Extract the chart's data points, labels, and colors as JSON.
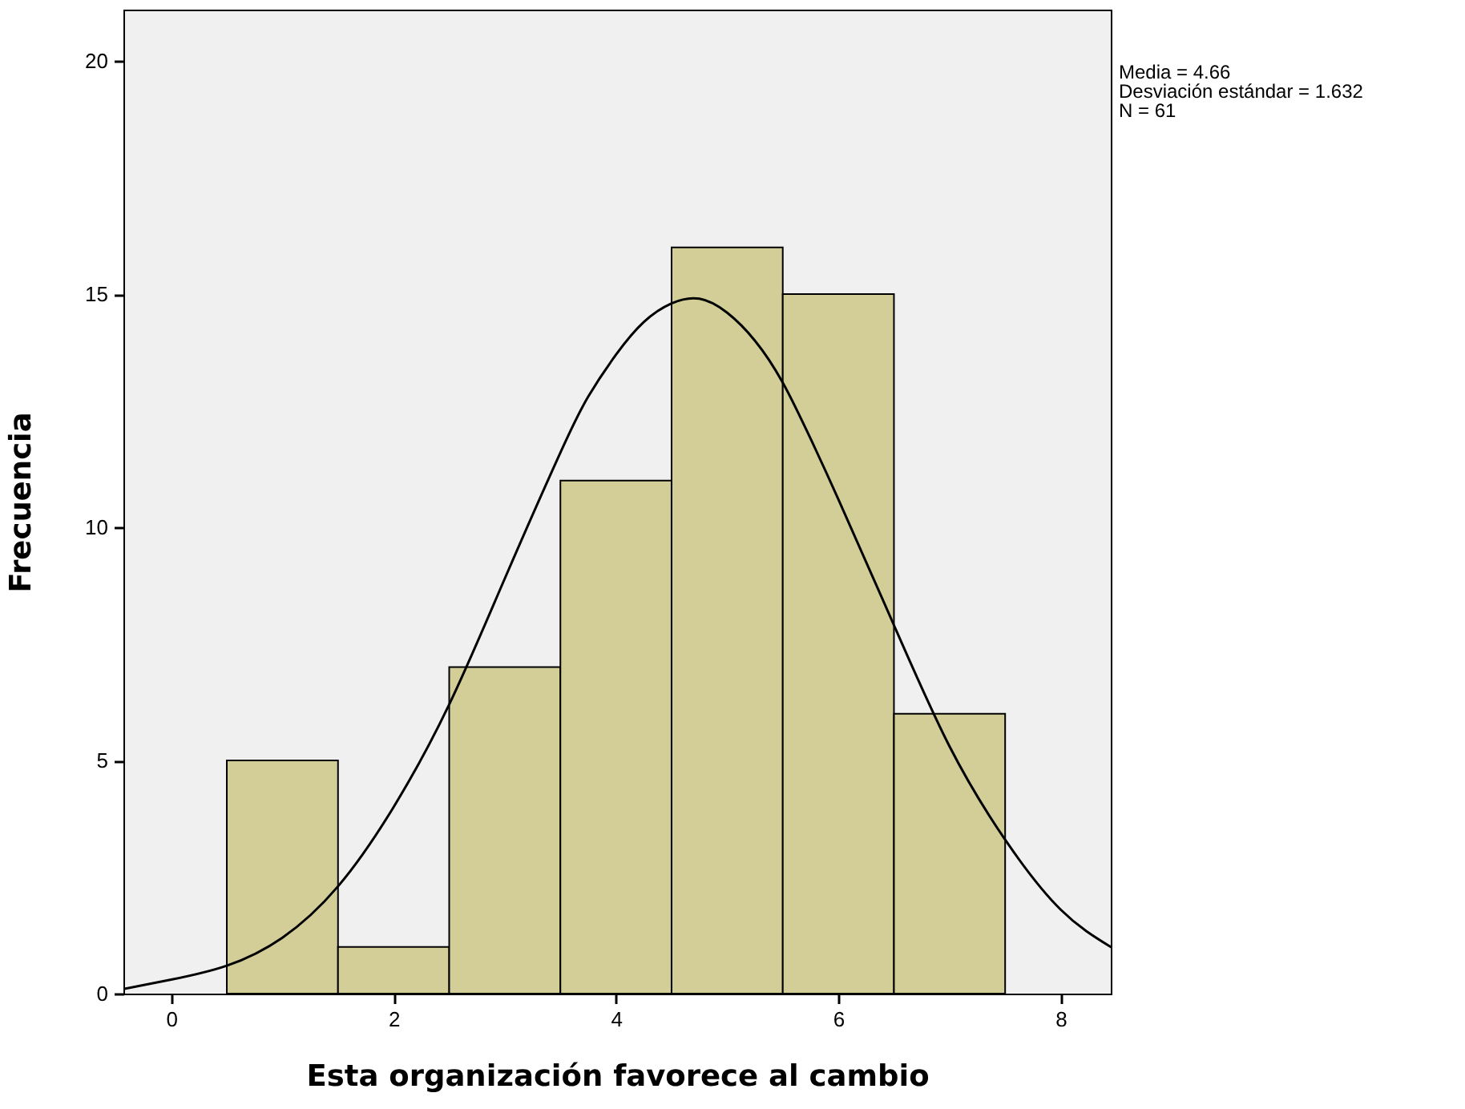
{
  "chart_data": {
    "type": "histogram",
    "xlabel": "Esta organización favorece al cambio",
    "ylabel": "Frecuencia",
    "bins": [
      0.5,
      1.5,
      2.5,
      3.5,
      4.5,
      5.5,
      6.5,
      7.5
    ],
    "values": [
      5,
      1,
      7,
      11,
      16,
      15,
      6
    ],
    "color": "#d3ce97",
    "series": [
      {
        "type": "line",
        "color": "#000000",
        "x": [
          -0.43,
          0,
          0.5,
          1,
          1.5,
          2,
          2.5,
          3,
          3.5,
          3.75,
          4,
          4.25,
          4.5,
          4.75,
          5,
          5.25,
          5.5,
          5.75,
          6,
          6.5,
          7,
          7.5,
          8,
          8.45
        ],
        "values": [
          0.1,
          0.3,
          0.6,
          1.2,
          2.3,
          4.0,
          6.2,
          8.9,
          11.6,
          12.8,
          13.7,
          14.4,
          14.8,
          14.9,
          14.6,
          14.0,
          13.1,
          11.9,
          10.6,
          7.9,
          5.3,
          3.3,
          1.8,
          1.0
        ]
      }
    ],
    "xlim": [
      -0.43,
      8.45
    ],
    "xticks": [
      0,
      2,
      4,
      6,
      8
    ],
    "ylim": [
      0,
      21.1
    ],
    "yticks": [
      0,
      5,
      10,
      15,
      20
    ],
    "grid": false,
    "annotations": [
      "Media = 4.66",
      "Desviación estándar = 1.632",
      "N = 61"
    ]
  }
}
